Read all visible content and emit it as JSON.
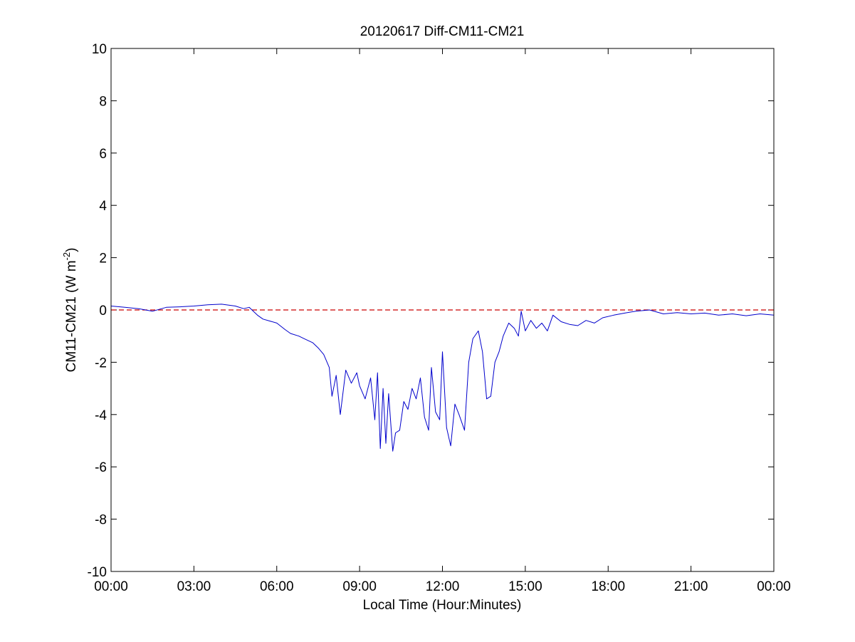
{
  "chart_data": {
    "type": "line",
    "title": "20120617 Diff-CM11-CM21",
    "xlabel": "Local Time (Hour:Minutes)",
    "ylabel_main": "CM11-CM21 (W m",
    "ylabel_sup": "-2",
    "ylabel_close": ")",
    "xlim": [
      0,
      24
    ],
    "ylim": [
      -10,
      10
    ],
    "grid": false,
    "x_ticks": [
      0,
      3,
      6,
      9,
      12,
      15,
      18,
      21,
      24
    ],
    "x_tick_labels": [
      "00:00",
      "03:00",
      "06:00",
      "09:00",
      "12:00",
      "15:00",
      "18:00",
      "21:00",
      "00:00"
    ],
    "y_ticks": [
      10,
      8,
      6,
      4,
      2,
      0,
      -2,
      -4,
      -6,
      -8,
      -10
    ],
    "y_tick_labels": [
      "10",
      "8",
      "6",
      "4",
      "2",
      "0",
      "-2",
      "-4",
      "-6",
      "-8",
      "-10"
    ],
    "reference_line": {
      "y": 0,
      "style": "dashed",
      "color": "#cc0000"
    },
    "series": [
      {
        "color": "#0000cc",
        "x_unit": "hours",
        "x": [
          0,
          0.5,
          1,
          1.5,
          2,
          2.5,
          3,
          3.5,
          4,
          4.5,
          4.8,
          5,
          5.3,
          5.5,
          6,
          6.3,
          6.5,
          6.8,
          7,
          7.3,
          7.5,
          7.7,
          7.9,
          8,
          8.15,
          8.3,
          8.5,
          8.7,
          8.9,
          9,
          9.2,
          9.4,
          9.55,
          9.65,
          9.75,
          9.85,
          9.95,
          10.05,
          10.2,
          10.3,
          10.45,
          10.6,
          10.75,
          10.9,
          11.05,
          11.2,
          11.35,
          11.5,
          11.6,
          11.75,
          11.9,
          12,
          12.15,
          12.3,
          12.45,
          12.6,
          12.8,
          12.95,
          13.1,
          13.3,
          13.45,
          13.6,
          13.75,
          13.9,
          14.05,
          14.2,
          14.4,
          14.6,
          14.75,
          14.85,
          15,
          15.2,
          15.4,
          15.6,
          15.8,
          16,
          16.3,
          16.6,
          16.9,
          17.2,
          17.5,
          17.8,
          18.2,
          18.6,
          19,
          19.5,
          20,
          20.5,
          21,
          21.5,
          22,
          22.5,
          23,
          23.5,
          24
        ],
        "y": [
          0.15,
          0.1,
          0.05,
          -0.05,
          0.1,
          0.12,
          0.15,
          0.2,
          0.22,
          0.15,
          0.05,
          0.1,
          -0.2,
          -0.35,
          -0.5,
          -0.75,
          -0.9,
          -1.0,
          -1.1,
          -1.25,
          -1.45,
          -1.7,
          -2.2,
          -3.3,
          -2.5,
          -4.0,
          -2.3,
          -2.8,
          -2.4,
          -2.9,
          -3.4,
          -2.6,
          -4.2,
          -2.4,
          -5.3,
          -3.0,
          -5.1,
          -3.2,
          -5.4,
          -4.7,
          -4.6,
          -3.5,
          -3.8,
          -3.0,
          -3.4,
          -2.6,
          -4.1,
          -4.6,
          -2.2,
          -3.9,
          -4.2,
          -1.6,
          -4.5,
          -5.2,
          -3.6,
          -4.0,
          -4.6,
          -2.0,
          -1.1,
          -0.8,
          -1.6,
          -3.4,
          -3.3,
          -2.0,
          -1.6,
          -1.0,
          -0.5,
          -0.7,
          -1.0,
          -0.05,
          -0.8,
          -0.4,
          -0.7,
          -0.5,
          -0.8,
          -0.2,
          -0.45,
          -0.55,
          -0.6,
          -0.4,
          -0.5,
          -0.3,
          -0.2,
          -0.12,
          -0.05,
          0.0,
          -0.15,
          -0.1,
          -0.15,
          -0.12,
          -0.2,
          -0.15,
          -0.22,
          -0.15,
          -0.2
        ]
      }
    ]
  }
}
